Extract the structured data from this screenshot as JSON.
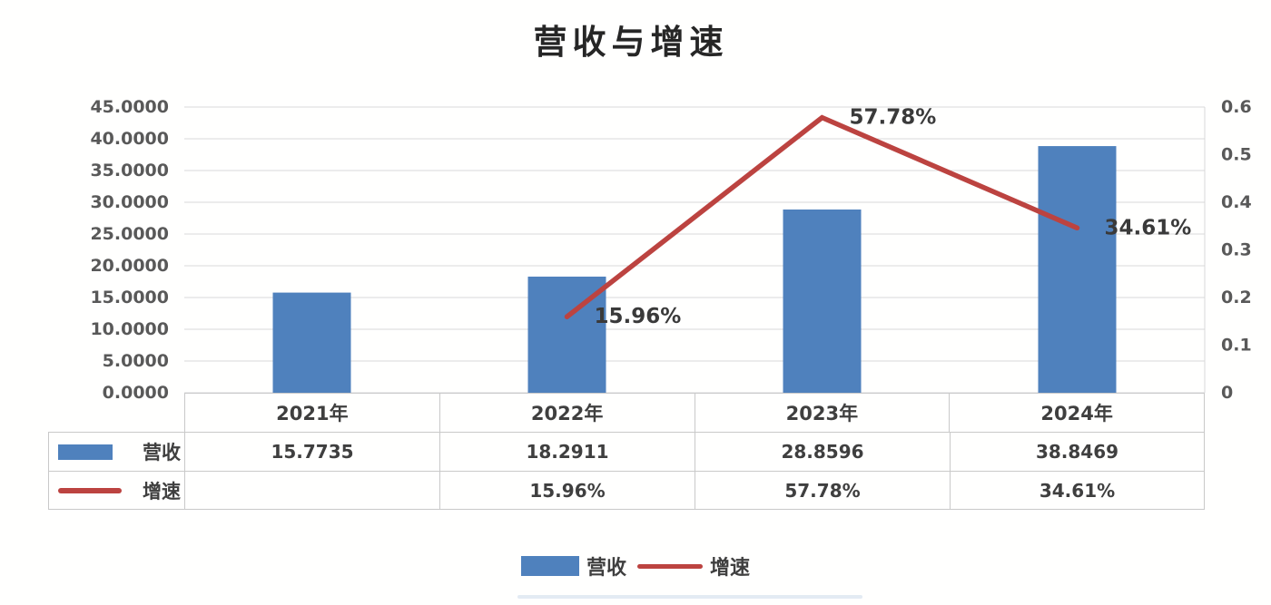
{
  "title": "营收与增速",
  "colors": {
    "bar": "#4f81bd",
    "line": "#bc4340",
    "grid": "#d9d9d9",
    "axis_text": "#595959",
    "label_text": "#3a3a3a",
    "table_text": "#3f3f3f",
    "border": "#c9c9c9",
    "title_text": "#262626"
  },
  "chart_data": {
    "type": "combo_bar_line",
    "title": "营收与增速",
    "categories": [
      "2021年",
      "2022年",
      "2023年",
      "2024年"
    ],
    "series": [
      {
        "name": "营收",
        "type": "bar",
        "axis": "left",
        "values": [
          15.7735,
          18.2911,
          28.8596,
          38.8469
        ]
      },
      {
        "name": "增速",
        "type": "line",
        "axis": "right",
        "values": [
          null,
          0.1596,
          0.5778,
          0.3461
        ],
        "point_labels": [
          "",
          "15.96%",
          "57.78%",
          "34.61%"
        ]
      }
    ],
    "left_axis": {
      "min": 0,
      "max": 45,
      "step": 5,
      "tick_labels": [
        "0.0000",
        "5.0000",
        "10.0000",
        "15.0000",
        "20.0000",
        "25.0000",
        "30.0000",
        "35.0000",
        "40.0000",
        "45.0000"
      ]
    },
    "right_axis": {
      "min": 0,
      "max": 0.6,
      "step": 0.1,
      "tick_labels": [
        "0",
        "0.1",
        "0.2",
        "0.3",
        "0.4",
        "0.5",
        "0.6"
      ]
    },
    "gridlines": "horizontal",
    "legend_position": "bottom"
  },
  "table": {
    "header": [
      "2021年",
      "2022年",
      "2023年",
      "2024年"
    ],
    "rows": [
      {
        "label": "营收",
        "swatch": "bar-swatch",
        "values": [
          "15.7735",
          "18.2911",
          "28.8596",
          "38.8469"
        ]
      },
      {
        "label": "增速",
        "swatch": "line-swatch",
        "values": [
          "",
          "15.96%",
          "57.78%",
          "34.61%"
        ]
      }
    ]
  },
  "legend": {
    "items": [
      {
        "label": "营收",
        "swatch": "bar-swatch"
      },
      {
        "label": "增速",
        "swatch": "line-swatch"
      }
    ]
  }
}
